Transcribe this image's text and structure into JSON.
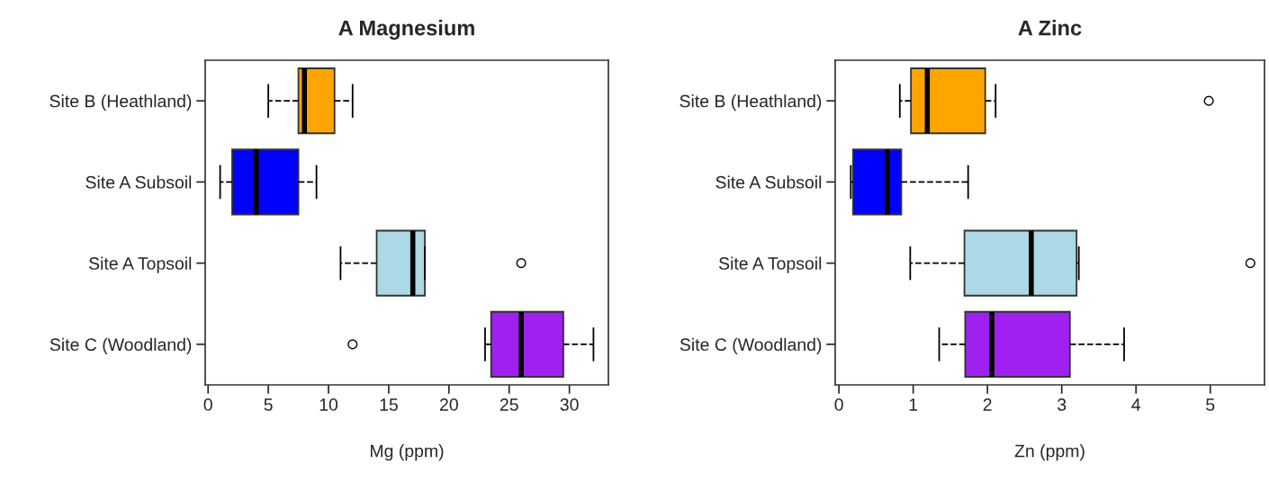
{
  "chart_data": [
    {
      "type": "box",
      "orientation": "horizontal",
      "title": "A Magnesium",
      "xlabel": "Mg (ppm)",
      "categories": [
        "Site B (Heathland)",
        "Site A Subsoil",
        "Site A Topsoil",
        "Site C (Woodland)"
      ],
      "colors": [
        "#ffa500",
        "#0000ff",
        "#add8e6",
        "#a020f0"
      ],
      "boxes": [
        {
          "low": 5,
          "q1": 7.5,
          "median": 8,
          "q3": 10.5,
          "high": 12
        },
        {
          "low": 1,
          "q1": 2,
          "median": 4,
          "q3": 7.5,
          "high": 9
        },
        {
          "low": 11,
          "q1": 14,
          "median": 17,
          "q3": 18,
          "high": 18,
          "outliers": [
            26
          ]
        },
        {
          "low": 23,
          "q1": 23.5,
          "median": 26,
          "q3": 29.5,
          "high": 32,
          "outliers": [
            12
          ]
        }
      ],
      "xlim": [
        -0.24,
        33.24
      ],
      "xticks": [
        0,
        5,
        10,
        15,
        20,
        25,
        30
      ],
      "grid": false,
      "line_style": "dashed"
    },
    {
      "type": "box",
      "orientation": "horizontal",
      "title": "A Zinc",
      "xlabel": "Zn (ppm)",
      "categories": [
        "Site B (Heathland)",
        "Site A Subsoil",
        "Site A Topsoil",
        "Site C (Woodland)"
      ],
      "colors": [
        "#ffa500",
        "#0000ff",
        "#add8e6",
        "#a020f0"
      ],
      "boxes": [
        {
          "low": 0.82,
          "q1": 0.97,
          "median": 1.19,
          "q3": 1.97,
          "high": 2.11,
          "outliers": [
            4.98
          ]
        },
        {
          "low": 0.16,
          "q1": 0.19,
          "median": 0.65,
          "q3": 0.84,
          "high": 1.74
        },
        {
          "low": 0.96,
          "q1": 1.69,
          "median": 2.59,
          "q3": 3.2,
          "high": 3.23,
          "outliers": [
            5.54
          ]
        },
        {
          "low": 1.35,
          "q1": 1.7,
          "median": 2.06,
          "q3": 3.11,
          "high": 3.84
        }
      ],
      "xlim": [
        -0.05,
        5.73
      ],
      "xticks": [
        0,
        1,
        2,
        3,
        4,
        5
      ],
      "grid": false,
      "line_style": "dashed"
    }
  ]
}
